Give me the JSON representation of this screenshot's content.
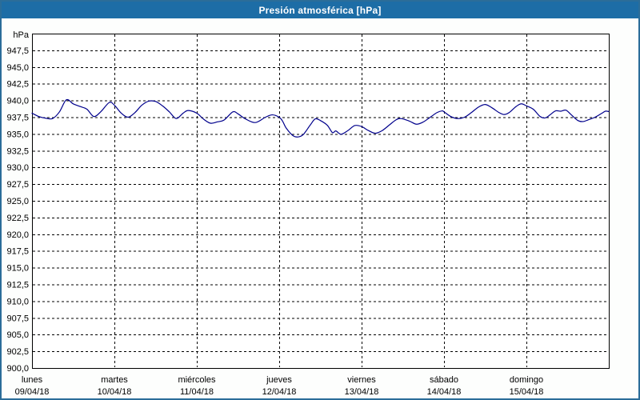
{
  "window": {
    "title": "Presión atmosférica [hPa]"
  },
  "colors": {
    "titlebar": "#1d6da6",
    "title_text": "#ffffff",
    "border": "#2b6d99",
    "plot_background": "#ffffff",
    "grid": "#000000",
    "axis": "#000000",
    "tick_text": "#000000",
    "line": "#00008c"
  },
  "chart_data": {
    "type": "line",
    "title": "Presión atmosférica [hPa]",
    "unit_label": "hPa",
    "ylabel": "hPa",
    "xlabel": "",
    "ylim": [
      900,
      950
    ],
    "y_tick_step": 2.5,
    "grid": true,
    "grid_style": "dashed",
    "legend": "none",
    "x_total_hours": 168,
    "y_ticks": [
      {
        "value": 947.5,
        "label": "947,5"
      },
      {
        "value": 945.0,
        "label": "945,0"
      },
      {
        "value": 942.5,
        "label": "942,5"
      },
      {
        "value": 940.0,
        "label": "940,0"
      },
      {
        "value": 937.5,
        "label": "937,5"
      },
      {
        "value": 935.0,
        "label": "935,0"
      },
      {
        "value": 932.5,
        "label": "932,5"
      },
      {
        "value": 930.0,
        "label": "930,0"
      },
      {
        "value": 927.5,
        "label": "927,5"
      },
      {
        "value": 925.0,
        "label": "925,0"
      },
      {
        "value": 922.5,
        "label": "922,5"
      },
      {
        "value": 920.0,
        "label": "920,0"
      },
      {
        "value": 917.5,
        "label": "917,5"
      },
      {
        "value": 915.0,
        "label": "915,0"
      },
      {
        "value": 912.5,
        "label": "912,5"
      },
      {
        "value": 910.0,
        "label": "910,0"
      },
      {
        "value": 907.5,
        "label": "907,5"
      },
      {
        "value": 905.0,
        "label": "905,0"
      },
      {
        "value": 902.5,
        "label": "902,5"
      },
      {
        "value": 900.0,
        "label": "900,0"
      }
    ],
    "x_categories": [
      {
        "day": "lunes",
        "date": "09/04/18"
      },
      {
        "day": "martes",
        "date": "10/04/18"
      },
      {
        "day": "miércoles",
        "date": "11/04/18"
      },
      {
        "day": "jueves",
        "date": "12/04/18"
      },
      {
        "day": "viernes",
        "date": "13/04/18"
      },
      {
        "day": "sábado",
        "date": "14/04/18"
      },
      {
        "day": "domingo",
        "date": "15/04/18"
      }
    ],
    "series": [
      {
        "name": "Presión atmosférica",
        "color": "#00008c",
        "points_format": "[hours_from_monday_00h, hPa]",
        "points": [
          [
            0,
            938.1
          ],
          [
            2,
            937.6
          ],
          [
            4,
            937.35
          ],
          [
            6,
            937.3
          ],
          [
            8,
            938.3
          ],
          [
            10,
            940.1
          ],
          [
            12,
            939.5
          ],
          [
            14,
            939.1
          ],
          [
            16,
            938.7
          ],
          [
            18,
            937.6
          ],
          [
            20,
            938.3
          ],
          [
            22.5,
            939.7
          ],
          [
            24,
            939.3
          ],
          [
            26,
            938.1
          ],
          [
            28,
            937.5
          ],
          [
            30,
            938.2
          ],
          [
            32,
            939.3
          ],
          [
            34,
            939.9
          ],
          [
            36,
            939.85
          ],
          [
            38,
            939.2
          ],
          [
            40,
            938.3
          ],
          [
            42,
            937.3
          ],
          [
            44,
            938.1
          ],
          [
            45.5,
            938.5
          ],
          [
            48,
            938.1
          ],
          [
            50,
            937.2
          ],
          [
            52,
            936.6
          ],
          [
            54,
            936.8
          ],
          [
            56,
            937.1
          ],
          [
            58.5,
            938.3
          ],
          [
            60,
            938.0
          ],
          [
            62,
            937.3
          ],
          [
            65,
            936.7
          ],
          [
            68,
            937.5
          ],
          [
            70,
            937.85
          ],
          [
            72,
            937.5
          ],
          [
            73,
            936.9
          ],
          [
            74,
            935.9
          ],
          [
            76,
            934.75
          ],
          [
            77.5,
            934.55
          ],
          [
            79,
            934.9
          ],
          [
            81,
            936.3
          ],
          [
            82.5,
            937.25
          ],
          [
            84,
            937.0
          ],
          [
            86,
            936.3
          ],
          [
            87.5,
            935.2
          ],
          [
            88.5,
            935.45
          ],
          [
            90,
            934.95
          ],
          [
            92,
            935.5
          ],
          [
            94,
            936.25
          ],
          [
            96,
            936.1
          ],
          [
            98,
            935.5
          ],
          [
            100,
            935.1
          ],
          [
            102,
            935.5
          ],
          [
            104,
            936.3
          ],
          [
            106,
            937.1
          ],
          [
            107.5,
            937.3
          ],
          [
            110,
            936.9
          ],
          [
            112,
            936.45
          ],
          [
            114,
            936.8
          ],
          [
            116,
            937.5
          ],
          [
            118,
            938.2
          ],
          [
            119.5,
            938.45
          ],
          [
            120,
            938.3
          ],
          [
            122,
            937.6
          ],
          [
            124,
            937.3
          ],
          [
            126,
            937.5
          ],
          [
            128,
            938.2
          ],
          [
            130,
            939.0
          ],
          [
            132,
            939.4
          ],
          [
            134,
            938.9
          ],
          [
            136,
            938.2
          ],
          [
            137.5,
            937.9
          ],
          [
            139,
            938.2
          ],
          [
            141,
            939.1
          ],
          [
            142.5,
            939.5
          ],
          [
            144,
            939.2
          ],
          [
            146,
            938.7
          ],
          [
            148,
            937.6
          ],
          [
            149.5,
            937.4
          ],
          [
            151,
            937.9
          ],
          [
            152.5,
            938.45
          ],
          [
            154,
            938.4
          ],
          [
            155.5,
            938.55
          ],
          [
            157,
            937.9
          ],
          [
            159,
            937.0
          ],
          [
            160.5,
            936.85
          ],
          [
            162,
            937.1
          ],
          [
            164,
            937.5
          ],
          [
            166,
            938.1
          ],
          [
            167,
            938.4
          ],
          [
            168,
            938.35
          ]
        ]
      }
    ]
  }
}
